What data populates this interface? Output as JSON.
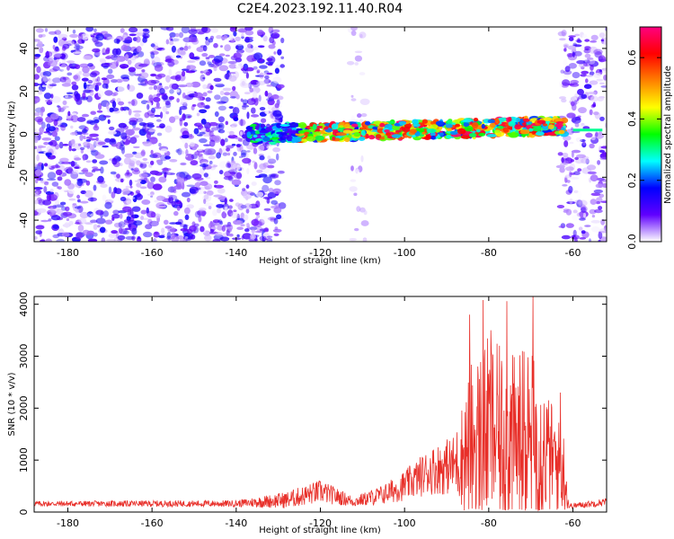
{
  "title": "C2E4.2023.192.11.40.R04",
  "chart_data": [
    {
      "type": "heatmap",
      "xlabel": "Height of straight line (km)",
      "ylabel": "Frequency (Hz)",
      "xlim": [
        -188,
        -52
      ],
      "ylim": [
        -50,
        50
      ],
      "xticks": [
        -180,
        -160,
        -140,
        -120,
        -100,
        -80,
        -60
      ],
      "yticks": [
        -40,
        -20,
        0,
        20,
        40
      ],
      "colorbar": {
        "label": "Normalized spectral amplitude",
        "range": [
          0,
          0.7
        ],
        "ticks": [
          0.0,
          0.2,
          0.4,
          0.6
        ],
        "colors": [
          "#ffffff",
          "#6000ff",
          "#0000ff",
          "#00ffff",
          "#00ff00",
          "#ffff00",
          "#ff8000",
          "#ff0000",
          "#ff0080"
        ]
      },
      "noise_regions": [
        {
          "x": [
            -188,
            -129
          ],
          "y": [
            -50,
            50
          ],
          "level": 0.12
        },
        {
          "x": [
            -113,
            -109
          ],
          "y": [
            -50,
            50
          ],
          "level": 0.04
        },
        {
          "x": [
            -63,
            -52
          ],
          "y": [
            -50,
            50
          ],
          "level": 0.1
        }
      ],
      "signal_band": {
        "x": [
          -137,
          -62
        ],
        "center_start": 0,
        "center_end": 4,
        "width_hz": 8,
        "peak": 0.7
      },
      "line_segment": {
        "x": [
          -60,
          -53
        ],
        "y": 2
      }
    },
    {
      "type": "line",
      "xlabel": "Height of straight line (km)",
      "ylabel": "SNR (10 * v/v)",
      "xlim": [
        -188,
        -52
      ],
      "ylim": [
        0,
        4150
      ],
      "xticks": [
        -180,
        -160,
        -140,
        -120,
        -100,
        -80,
        -60
      ],
      "yticks": [
        0,
        1000,
        2000,
        3000,
        4000
      ],
      "series": [
        {
          "color": "#e8302a",
          "envelope": [
            {
              "x": -188,
              "base": 150,
              "amp": 80
            },
            {
              "x": -140,
              "base": 150,
              "amp": 100
            },
            {
              "x": -128,
              "base": 200,
              "amp": 250
            },
            {
              "x": -120,
              "base": 350,
              "amp": 350
            },
            {
              "x": -112,
              "base": 180,
              "amp": 150
            },
            {
              "x": -105,
              "base": 300,
              "amp": 300
            },
            {
              "x": -100,
              "base": 450,
              "amp": 450
            },
            {
              "x": -94,
              "base": 700,
              "amp": 700
            },
            {
              "x": -88,
              "base": 800,
              "amp": 900
            },
            {
              "x": -84,
              "base": 1000,
              "amp": 2500
            },
            {
              "x": -80,
              "base": 1200,
              "amp": 2800
            },
            {
              "x": -75,
              "base": 1000,
              "amp": 2600
            },
            {
              "x": -70,
              "base": 1000,
              "amp": 2800
            },
            {
              "x": -66,
              "base": 900,
              "amp": 1800
            },
            {
              "x": -62,
              "base": 600,
              "amp": 1200
            },
            {
              "x": -61,
              "base": 100,
              "amp": 80
            },
            {
              "x": -52,
              "base": 180,
              "amp": 120
            }
          ],
          "peaks": [
            {
              "x": -84.5,
              "y": 3800
            },
            {
              "x": -81.3,
              "y": 4080
            },
            {
              "x": -79.5,
              "y": 3500
            },
            {
              "x": -75.7,
              "y": 4060
            },
            {
              "x": -69.5,
              "y": 4150
            },
            {
              "x": -72.0,
              "y": 3100
            },
            {
              "x": -63.0,
              "y": 2300
            }
          ]
        }
      ]
    }
  ]
}
